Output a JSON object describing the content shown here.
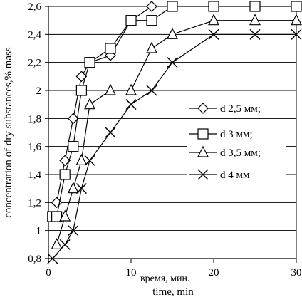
{
  "chart_data": {
    "type": "line",
    "title": "",
    "xlabel": "time, min",
    "xlabel_alt": "время, мин.",
    "ylabel": "concentration of dry substances,% mass",
    "xlim": [
      0,
      30
    ],
    "ylim": [
      0.8,
      2.6
    ],
    "x_ticks": [
      0,
      10,
      20,
      30
    ],
    "x_tick_labels": [
      "0",
      "10",
      "20",
      "30"
    ],
    "y_ticks": [
      0.8,
      1.0,
      1.2,
      1.4,
      1.6,
      1.8,
      2.0,
      2.2,
      2.4,
      2.6
    ],
    "y_tick_labels": [
      "0,8",
      "1",
      "1,2",
      "1,4",
      "1,6",
      "1,8",
      "2",
      "2,2",
      "2,4",
      "2,6"
    ],
    "grid": "horizontal",
    "legend_position": "right",
    "series": [
      {
        "name": "d  2,5 мм;",
        "marker": "diamond",
        "x": [
          1,
          2,
          3,
          4,
          5,
          7.5,
          10,
          12.5
        ],
        "y": [
          1.2,
          1.5,
          1.8,
          2.1,
          2.2,
          2.25,
          2.5,
          2.6
        ]
      },
      {
        "name": "d  3 мм;",
        "marker": "square",
        "x": [
          0.5,
          1,
          2,
          3,
          4,
          5,
          7.5,
          10,
          12.5,
          15,
          20,
          25,
          30
        ],
        "y": [
          1.1,
          1.1,
          1.4,
          1.6,
          2.0,
          2.2,
          2.3,
          2.5,
          2.5,
          2.6,
          2.6,
          2.6,
          2.6
        ]
      },
      {
        "name": "d  3,5 мм;",
        "marker": "triangle",
        "x": [
          1,
          2,
          3,
          4,
          5,
          7.5,
          10,
          12.5,
          15,
          20,
          25,
          30
        ],
        "y": [
          0.9,
          1.1,
          1.3,
          1.5,
          1.9,
          2.0,
          2.0,
          2.3,
          2.4,
          2.5,
          2.5,
          2.5
        ]
      },
      {
        "name": "d  4 мм",
        "marker": "x",
        "x": [
          0.5,
          2,
          3,
          4,
          5,
          7.5,
          10,
          12.5,
          15,
          20,
          25,
          30
        ],
        "y": [
          0.8,
          0.9,
          1.0,
          1.3,
          1.5,
          1.7,
          1.9,
          2.0,
          2.2,
          2.4,
          2.4,
          2.4
        ]
      }
    ]
  }
}
